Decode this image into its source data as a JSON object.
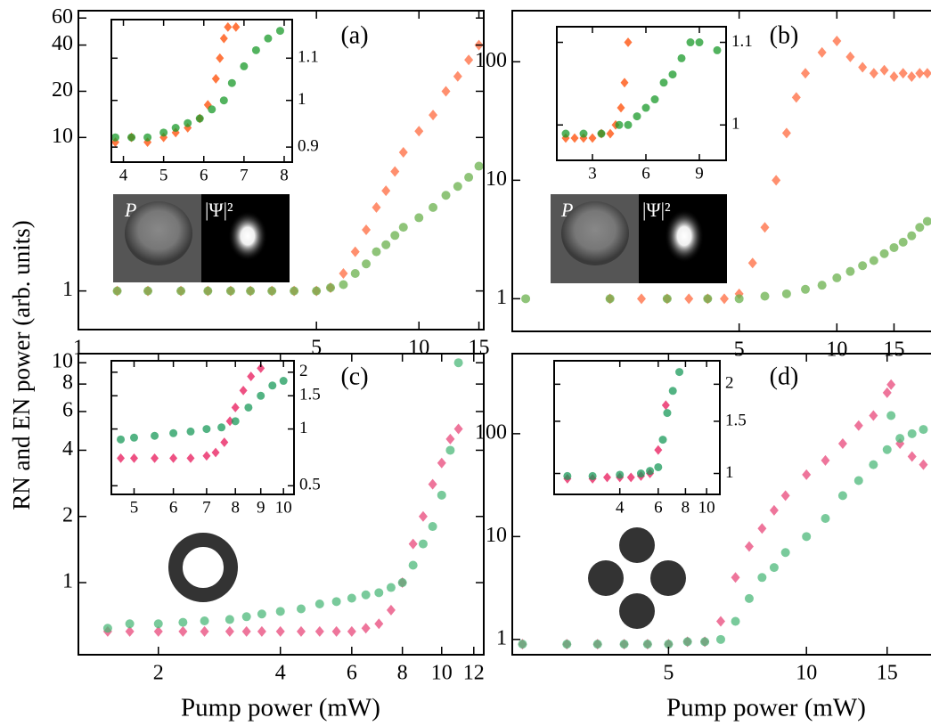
{
  "chart_data": [
    {
      "type": "scatter",
      "label": "(a)",
      "ylabel": "RN and EN power (arb. units)",
      "image_labels": [
        "P",
        "|Ψ|²"
      ],
      "xlog": true,
      "ylog": true,
      "xlim": [
        1,
        15.5
      ],
      "ylim": [
        0.56,
        67
      ],
      "xticks": [
        1,
        5,
        10,
        15
      ],
      "yticks": [
        1,
        10,
        20,
        40,
        60
      ],
      "series": [
        {
          "color": "#ff6a3d",
          "marker": "diamond",
          "x": [
            1.3,
            1.6,
            2.0,
            2.4,
            2.8,
            3.2,
            3.7,
            4.3,
            5.0,
            5.5,
            6.0,
            6.5,
            7,
            7.5,
            8,
            8.5,
            9,
            10,
            11,
            12,
            13,
            14,
            15
          ],
          "values": [
            1,
            1,
            1,
            1,
            1,
            1,
            1,
            1,
            1,
            1.05,
            1.3,
            1.8,
            2.5,
            3.5,
            4.5,
            6,
            8,
            11,
            14,
            20,
            25,
            32,
            40
          ]
        },
        {
          "color": "#6ab04c",
          "marker": "circle",
          "x": [
            1.3,
            1.6,
            2.0,
            2.4,
            2.8,
            3.2,
            3.7,
            4.3,
            5.0,
            5.5,
            6.0,
            6.5,
            7,
            7.5,
            8,
            8.5,
            9,
            10,
            11,
            12,
            13,
            14,
            15
          ],
          "values": [
            1,
            1,
            1,
            1,
            1,
            1,
            1,
            1,
            1,
            1.05,
            1.1,
            1.3,
            1.5,
            1.8,
            2.0,
            2.3,
            2.6,
            3.0,
            3.5,
            4.2,
            4.8,
            5.5,
            6.5
          ]
        }
      ],
      "inset": {
        "type": "scatter",
        "xlog": false,
        "ylog": true,
        "ytick_side": "right",
        "xlim": [
          3.7,
          8.2
        ],
        "ylim": [
          0.87,
          1.2
        ],
        "xticks": [
          4,
          5,
          6,
          7,
          8
        ],
        "yticks": [
          0.9,
          1,
          1.1
        ],
        "series": [
          {
            "color": "#ff4a00",
            "marker": "diamond",
            "x": [
              3.8,
              4.2,
              4.6,
              5.0,
              5.3,
              5.6,
              5.9,
              6.1,
              6.3,
              6.4,
              6.5,
              6.6,
              6.8
            ],
            "values": [
              0.91,
              0.92,
              0.91,
              0.92,
              0.93,
              0.94,
              0.96,
              0.99,
              1.05,
              1.1,
              1.15,
              1.18,
              1.18
            ]
          },
          {
            "color": "#1a9a2a",
            "marker": "circle",
            "x": [
              3.8,
              4.2,
              4.6,
              5.0,
              5.3,
              5.6,
              5.9,
              6.2,
              6.5,
              6.7,
              7.0,
              7.3,
              7.6,
              7.9
            ],
            "values": [
              0.92,
              0.92,
              0.92,
              0.93,
              0.94,
              0.95,
              0.96,
              0.98,
              1.0,
              1.04,
              1.08,
              1.12,
              1.15,
              1.17
            ]
          }
        ]
      }
    },
    {
      "type": "scatter",
      "label": "(b)",
      "image_labels": [
        "P",
        "|Ψ|²"
      ],
      "xlog": true,
      "ylog": true,
      "xlim": [
        1,
        19.5
      ],
      "ylim": [
        0.53,
        270
      ],
      "xticks": [
        5,
        10,
        15
      ],
      "yticks": [
        1,
        10,
        100
      ],
      "series": [
        {
          "color": "#ff6a3d",
          "marker": "diamond",
          "x": [
            2,
            2.5,
            3,
            3.5,
            4,
            4.5,
            5,
            5.5,
            6,
            6.5,
            7,
            7.5,
            8,
            9,
            10,
            11,
            12,
            13,
            14,
            15,
            16,
            17,
            18,
            19
          ],
          "values": [
            1,
            1,
            1,
            1,
            1,
            1,
            1.1,
            2,
            4,
            10,
            25,
            50,
            80,
            120,
            150,
            110,
            90,
            80,
            85,
            75,
            80,
            75,
            80,
            80
          ]
        },
        {
          "color": "#6ab04c",
          "marker": "circle",
          "x": [
            1.1,
            2,
            3,
            4,
            5,
            6,
            7,
            8,
            9,
            10,
            11,
            12,
            13,
            14,
            15,
            16,
            17,
            18,
            19
          ],
          "values": [
            1,
            1,
            1,
            1,
            1,
            1.05,
            1.1,
            1.2,
            1.3,
            1.5,
            1.7,
            1.9,
            2.1,
            2.4,
            2.7,
            3.0,
            3.4,
            4,
            4.5
          ]
        }
      ],
      "inset": {
        "type": "scatter",
        "xlog": false,
        "ylog": true,
        "ytick_side": "right",
        "xlim": [
          1,
          10.5
        ],
        "ylim": [
          0.96,
          1.12
        ],
        "xticks": [
          3,
          6,
          9
        ],
        "yticks": [
          1,
          1.1
        ],
        "series": [
          {
            "color": "#ff4a00",
            "marker": "diamond",
            "x": [
              1.5,
              2,
              2.5,
              3,
              3.5,
              4,
              4.3,
              4.6,
              4.8,
              5.0
            ],
            "values": [
              0.985,
              0.985,
              0.985,
              0.985,
              0.99,
              0.99,
              1.0,
              1.02,
              1.05,
              1.1
            ]
          },
          {
            "color": "#1a9a2a",
            "marker": "circle",
            "x": [
              1.5,
              2.5,
              3.5,
              4.5,
              5,
              5.5,
              6,
              6.5,
              7,
              7.5,
              8,
              8.5,
              9,
              10
            ],
            "values": [
              0.99,
              0.99,
              0.99,
              1.0,
              1.0,
              1.01,
              1.02,
              1.03,
              1.05,
              1.06,
              1.08,
              1.1,
              1.1,
              1.09
            ]
          }
        ]
      }
    },
    {
      "type": "scatter",
      "label": "(c)",
      "xlabel": "Pump power (mW)",
      "xlog": true,
      "ylog": true,
      "xlim": [
        1.27,
        12.7
      ],
      "ylim": [
        0.47,
        11
      ],
      "xticks": [
        2,
        4,
        6,
        8,
        10,
        12
      ],
      "yticks": [
        1,
        2,
        4,
        6,
        8,
        10
      ],
      "series": [
        {
          "color": "#e8477a",
          "marker": "diamond",
          "x": [
            1.5,
            1.7,
            2,
            2.3,
            2.6,
            3,
            3.3,
            3.6,
            4,
            4.5,
            5,
            5.5,
            6,
            6.5,
            7,
            7.5,
            8,
            8.5,
            9,
            9.5,
            10,
            10.5,
            11
          ],
          "values": [
            0.6,
            0.6,
            0.6,
            0.6,
            0.6,
            0.6,
            0.6,
            0.6,
            0.6,
            0.6,
            0.6,
            0.6,
            0.6,
            0.62,
            0.65,
            0.75,
            1.0,
            1.5,
            2.0,
            2.8,
            3.5,
            4.5,
            5
          ]
        },
        {
          "color": "#4cb87a",
          "marker": "circle",
          "x": [
            1.5,
            1.7,
            2,
            2.3,
            2.6,
            3,
            3.3,
            3.6,
            4,
            4.5,
            5,
            5.5,
            6,
            6.5,
            7,
            7.5,
            8,
            8.5,
            9,
            9.5,
            10,
            10.5,
            11
          ],
          "values": [
            0.62,
            0.65,
            0.65,
            0.66,
            0.67,
            0.68,
            0.7,
            0.72,
            0.74,
            0.76,
            0.8,
            0.82,
            0.85,
            0.88,
            0.9,
            0.95,
            1.0,
            1.2,
            1.5,
            1.8,
            2.5,
            4,
            10
          ]
        }
      ],
      "inset": {
        "type": "scatter",
        "xlog": true,
        "ylog": true,
        "ytick_side": "right",
        "xlim": [
          4.5,
          10.5
        ],
        "ylim": [
          0.45,
          2.3
        ],
        "xticks": [
          5,
          6,
          7,
          8,
          9,
          10
        ],
        "yticks": [
          0.5,
          1,
          1.5,
          2
        ],
        "series": [
          {
            "color": "#e8175a",
            "marker": "diamond",
            "x": [
              4.7,
              5,
              5.5,
              6,
              6.5,
              7,
              7.3,
              7.6,
              7.8,
              8,
              8.3,
              8.6,
              9
            ],
            "values": [
              0.7,
              0.7,
              0.7,
              0.7,
              0.7,
              0.72,
              0.75,
              0.85,
              1.1,
              1.3,
              1.6,
              1.9,
              2.1
            ]
          },
          {
            "color": "#1a9a5a",
            "marker": "circle",
            "x": [
              4.7,
              5,
              5.5,
              6,
              6.5,
              7,
              7.5,
              8,
              8.5,
              9,
              9.5,
              10
            ],
            "values": [
              0.88,
              0.9,
              0.92,
              0.95,
              0.97,
              1.0,
              1.02,
              1.1,
              1.3,
              1.5,
              1.7,
              1.8
            ]
          }
        ]
      }
    },
    {
      "type": "scatter",
      "label": "(d)",
      "xlabel": "Pump power (mW)",
      "xlog": true,
      "ylog": true,
      "xlim": [
        2.28,
        18.7
      ],
      "ylim": [
        0.71,
        600
      ],
      "xticks": [
        5,
        10,
        15
      ],
      "yticks": [
        1,
        10,
        100
      ],
      "series": [
        {
          "color": "#e8477a",
          "marker": "diamond",
          "x": [
            2.4,
            3,
            3.5,
            4,
            4.5,
            5,
            5.5,
            6,
            6.5,
            7,
            7.5,
            8,
            8.5,
            9,
            10,
            11,
            12,
            13,
            14,
            15,
            15.3,
            16,
            17,
            18
          ],
          "values": [
            0.9,
            0.9,
            0.9,
            0.9,
            0.9,
            0.9,
            0.95,
            0.95,
            1.5,
            4,
            8,
            12,
            18,
            25,
            40,
            55,
            80,
            120,
            150,
            250,
            300,
            80,
            60,
            50
          ]
        },
        {
          "color": "#4cb87a",
          "marker": "circle",
          "x": [
            2.4,
            3,
            3.5,
            4,
            4.5,
            5,
            5.5,
            6,
            6.5,
            7,
            7.5,
            8,
            8.5,
            9,
            10,
            11,
            12,
            13,
            14,
            15,
            15.3,
            16,
            17,
            18
          ],
          "values": [
            0.9,
            0.9,
            0.9,
            0.9,
            0.9,
            0.9,
            0.95,
            0.95,
            1.0,
            1.5,
            2.5,
            4,
            5,
            7,
            10,
            15,
            25,
            35,
            50,
            70,
            150,
            90,
            100,
            110
          ]
        }
      ],
      "inset": {
        "type": "scatter",
        "xlog": true,
        "ylog": true,
        "ytick_side": "right",
        "xlim": [
          2,
          11.5
        ],
        "ylim": [
          0.85,
          2.4
        ],
        "xticks": [
          4,
          6,
          8,
          10
        ],
        "yticks": [
          1,
          1.5,
          2
        ],
        "series": [
          {
            "color": "#e8175a",
            "marker": "diamond",
            "x": [
              2.3,
              3,
              3.5,
              4,
              4.5,
              5,
              5.5,
              6,
              6.5
            ],
            "values": [
              0.96,
              0.96,
              0.97,
              0.97,
              0.97,
              0.98,
              1.0,
              1.2,
              1.7
            ]
          },
          {
            "color": "#1a9a5a",
            "marker": "circle",
            "x": [
              2.3,
              3,
              4,
              5,
              5.5,
              6,
              6.3,
              6.6,
              7,
              7.5
            ],
            "values": [
              0.98,
              0.98,
              0.99,
              1.0,
              1.02,
              1.05,
              1.3,
              1.6,
              1.9,
              2.2
            ]
          }
        ]
      }
    }
  ]
}
